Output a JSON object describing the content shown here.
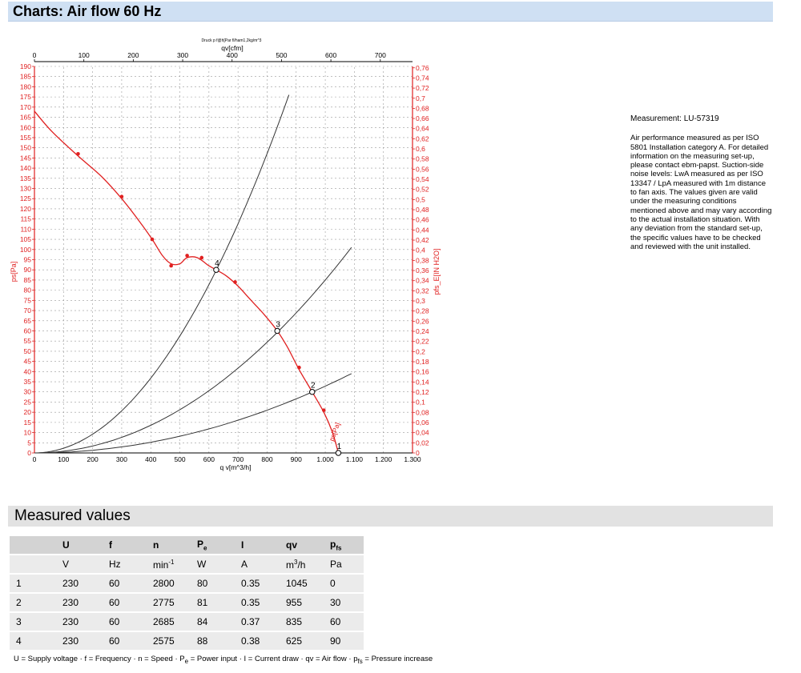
{
  "page": {
    "title": "Charts: Air flow 60 Hz",
    "section_title": "Measured values"
  },
  "notes": {
    "measurement": "Measurement: LU-57319",
    "description": "Air performance measured as per ISO 5801 Installation category A. For detailed information on the measuring set-up, please contact ebm-papst. Suction-side noise levels: LwA measured as per ISO 13347 / LpA measured with 1m distance to fan axis. The values given are valid under the measuring conditions mentioned above and may vary according to the actual installation situation. With any deviation from the standard set-up, the specific values have to be checked and reviewed with the unit installed."
  },
  "chart_data": {
    "type": "line",
    "top_caption": "Druck p f@h[Par fl/ham1,2kg/m^3",
    "x_label": "q v[m^3/h]",
    "x_ticks": [
      "0",
      "100",
      "200",
      "300",
      "400",
      "500",
      "600",
      "700",
      "800",
      "900",
      "1.000",
      "1.100",
      "1.200",
      "1.300"
    ],
    "x_range": [
      0,
      1300
    ],
    "x2_label": "qv[cfm]",
    "x2_ticks": [
      "0",
      "100",
      "200",
      "300",
      "400",
      "500",
      "600",
      "700"
    ],
    "x2_range_cfm": [
      0,
      765.2
    ],
    "y_label": "ps[Pa]",
    "y_range": [
      0,
      190
    ],
    "y_step": 5,
    "y2_label": "pfs_E[IN H2O]",
    "y2_ticks": [
      "0",
      "0,02",
      "0,04",
      "0,06",
      "0,08",
      "0,1",
      "0,12",
      "0,14",
      "0,16",
      "0,18",
      "0,2",
      "0,22",
      "0,24",
      "0,26",
      "0,28",
      "0,3",
      "0,32",
      "0,34",
      "0,36",
      "0,38",
      "0,4",
      "0,42",
      "0,44",
      "0,46",
      "0,48",
      "0,5",
      "0,52",
      "0,54",
      "0,56",
      "0,58",
      "0,6",
      "0,62",
      "0,64",
      "0,66",
      "0,68",
      "0,7",
      "0,72",
      "0,74",
      "0,76"
    ],
    "grid": true,
    "curve_label": "ps[Pa]",
    "fan_curve": {
      "x": [
        0,
        60,
        150,
        230,
        300,
        360,
        405,
        440,
        470,
        500,
        525,
        560,
        600,
        625,
        660,
        700,
        745,
        790,
        835,
        870,
        910,
        955,
        995,
        1025,
        1045
      ],
      "y": [
        168,
        158,
        146,
        136,
        125,
        114,
        105,
        97,
        93,
        93,
        96,
        96,
        92,
        90,
        87,
        82,
        75,
        68,
        60,
        52,
        41,
        30,
        20,
        10,
        0
      ],
      "points_x": [
        150,
        300,
        405,
        470,
        525,
        575,
        690,
        910,
        995
      ],
      "points_y": [
        147,
        126,
        105,
        92,
        97,
        96,
        84,
        42,
        21
      ]
    },
    "system_curves": [
      {
        "x_end": 875,
        "y_end": 176
      },
      {
        "x_end": 1090,
        "y_end": 101
      },
      {
        "x_end": 1090,
        "y_end": 39
      }
    ],
    "operating_points": [
      {
        "label": "1",
        "x": 1045,
        "y": 0
      },
      {
        "label": "2",
        "x": 955,
        "y": 30
      },
      {
        "label": "3",
        "x": 835,
        "y": 60
      },
      {
        "label": "4",
        "x": 625,
        "y": 90
      }
    ]
  },
  "table": {
    "headers": [
      "",
      "U",
      "f",
      "n",
      "P",
      "I",
      "qv",
      "p"
    ],
    "header_subs": [
      "",
      "",
      "",
      "",
      "e",
      "",
      "",
      "fs"
    ],
    "units": [
      "",
      "V",
      "Hz",
      "min",
      "W",
      "A",
      "m",
      "Pa"
    ],
    "unit_sups": [
      "",
      "",
      "",
      "-1",
      "",
      "",
      "3",
      ""
    ],
    "unit_tails": [
      "",
      "",
      "",
      "",
      "",
      "",
      "/h",
      ""
    ],
    "rows": [
      [
        "1",
        "230",
        "60",
        "2800",
        "80",
        "0.35",
        "1045",
        "0"
      ],
      [
        "2",
        "230",
        "60",
        "2775",
        "81",
        "0.35",
        "955",
        "30"
      ],
      [
        "3",
        "230",
        "60",
        "2685",
        "84",
        "0.37",
        "835",
        "60"
      ],
      [
        "4",
        "230",
        "60",
        "2575",
        "88",
        "0.38",
        "625",
        "90"
      ]
    ]
  },
  "legend_note": {
    "p1": "U = Supply voltage · f = Frequency · n = Speed · P",
    "s1": "e",
    "p2": " = Power input · I = Current draw · qv = Air flow · p",
    "s2": "fs",
    "p3": " = Pressure increase"
  },
  "colors": {
    "fan_curve": "#e02020",
    "system_curve": "#333333",
    "axis_red": "#e02020",
    "header_bar": "#cfe0f3"
  }
}
